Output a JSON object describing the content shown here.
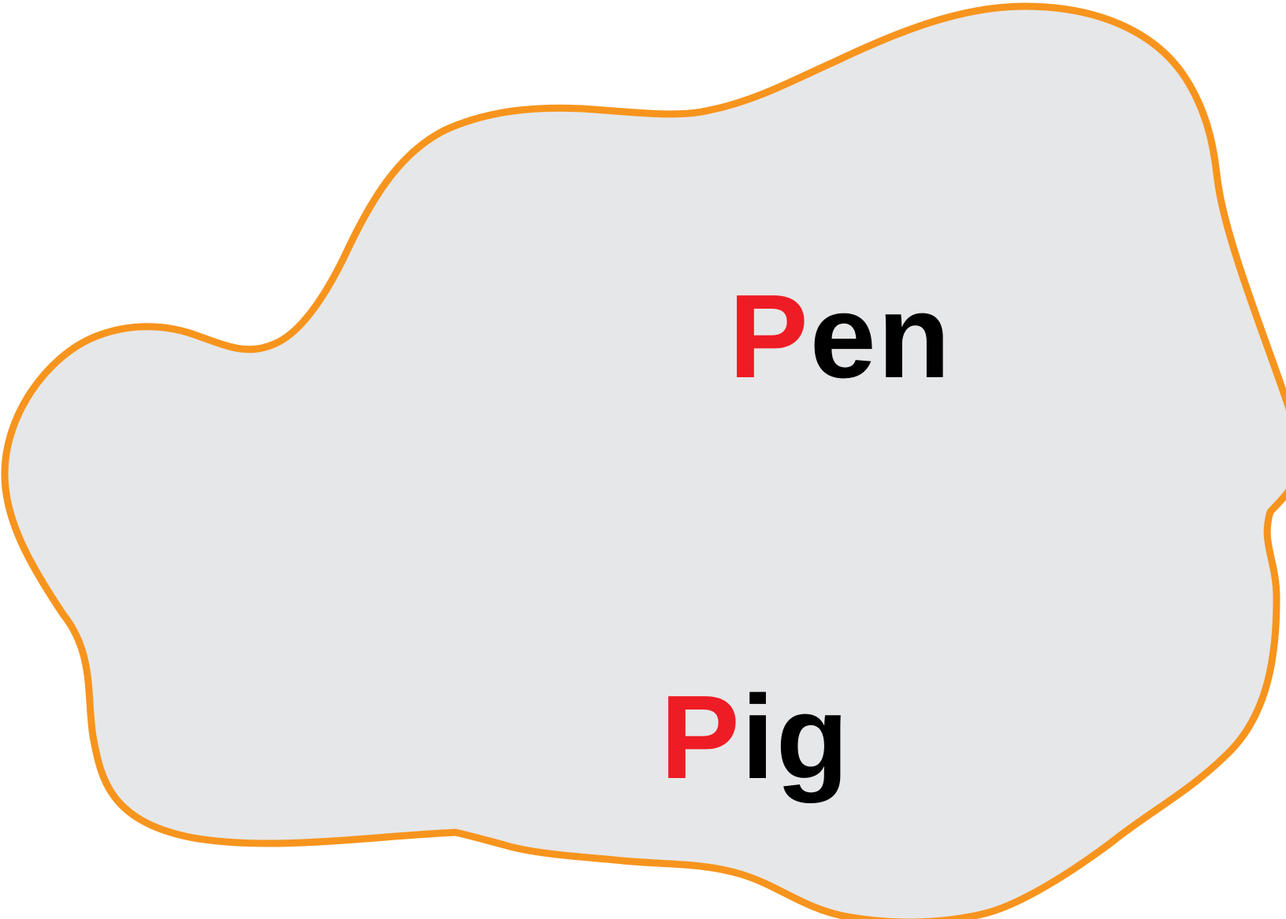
{
  "colors": {
    "blob_fill": "#e6e7e9",
    "blob_outline": "#f7941d",
    "first_letter": "#ee1c24",
    "rest_letters": "#000000"
  },
  "words": [
    {
      "first_letter": "P",
      "rest": "en"
    },
    {
      "first_letter": "P",
      "rest": "ig"
    }
  ]
}
